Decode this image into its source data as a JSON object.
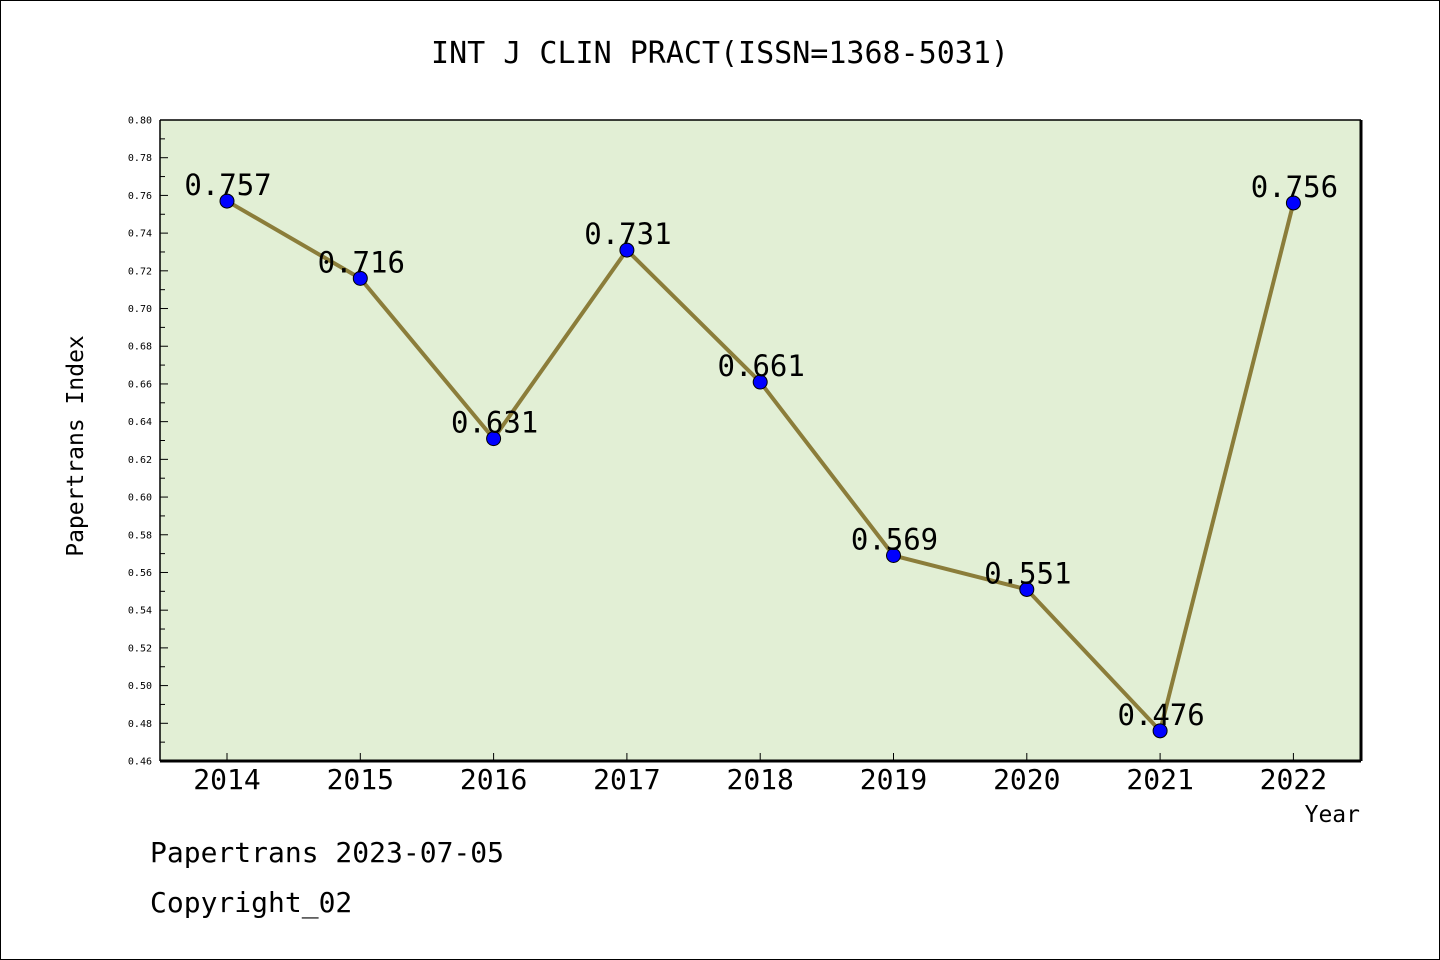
{
  "chart_data": {
    "type": "line",
    "title": "INT J CLIN PRACT(ISSN=1368-5031)",
    "xlabel": "Year",
    "ylabel": "Papertrans Index",
    "categories": [
      "2014",
      "2015",
      "2016",
      "2017",
      "2018",
      "2019",
      "2020",
      "2021",
      "2022"
    ],
    "series": [
      {
        "values": [
          0.757,
          0.716,
          0.631,
          0.731,
          0.661,
          0.569,
          0.551,
          0.476,
          0.756
        ]
      }
    ],
    "data_labels": [
      "0.757",
      "0.716",
      "0.631",
      "0.731",
      "0.661",
      "0.569",
      "0.551",
      "0.476",
      "0.756"
    ],
    "ylim": [
      0.46,
      0.8
    ],
    "yticks": [
      "0.46",
      "0.48",
      "0.50",
      "0.52",
      "0.54",
      "0.56",
      "0.58",
      "0.60",
      "0.62",
      "0.64",
      "0.66",
      "0.68",
      "0.70",
      "0.72",
      "0.74",
      "0.76",
      "0.78",
      "0.80"
    ],
    "grid": false,
    "legend": "none",
    "colors": {
      "plot_background": "#e2efd5",
      "line": "#8b7d3a",
      "marker": "#0000ff"
    }
  },
  "footer": {
    "line1": "Papertrans 2023-07-05",
    "line2": "Copyright_02"
  }
}
